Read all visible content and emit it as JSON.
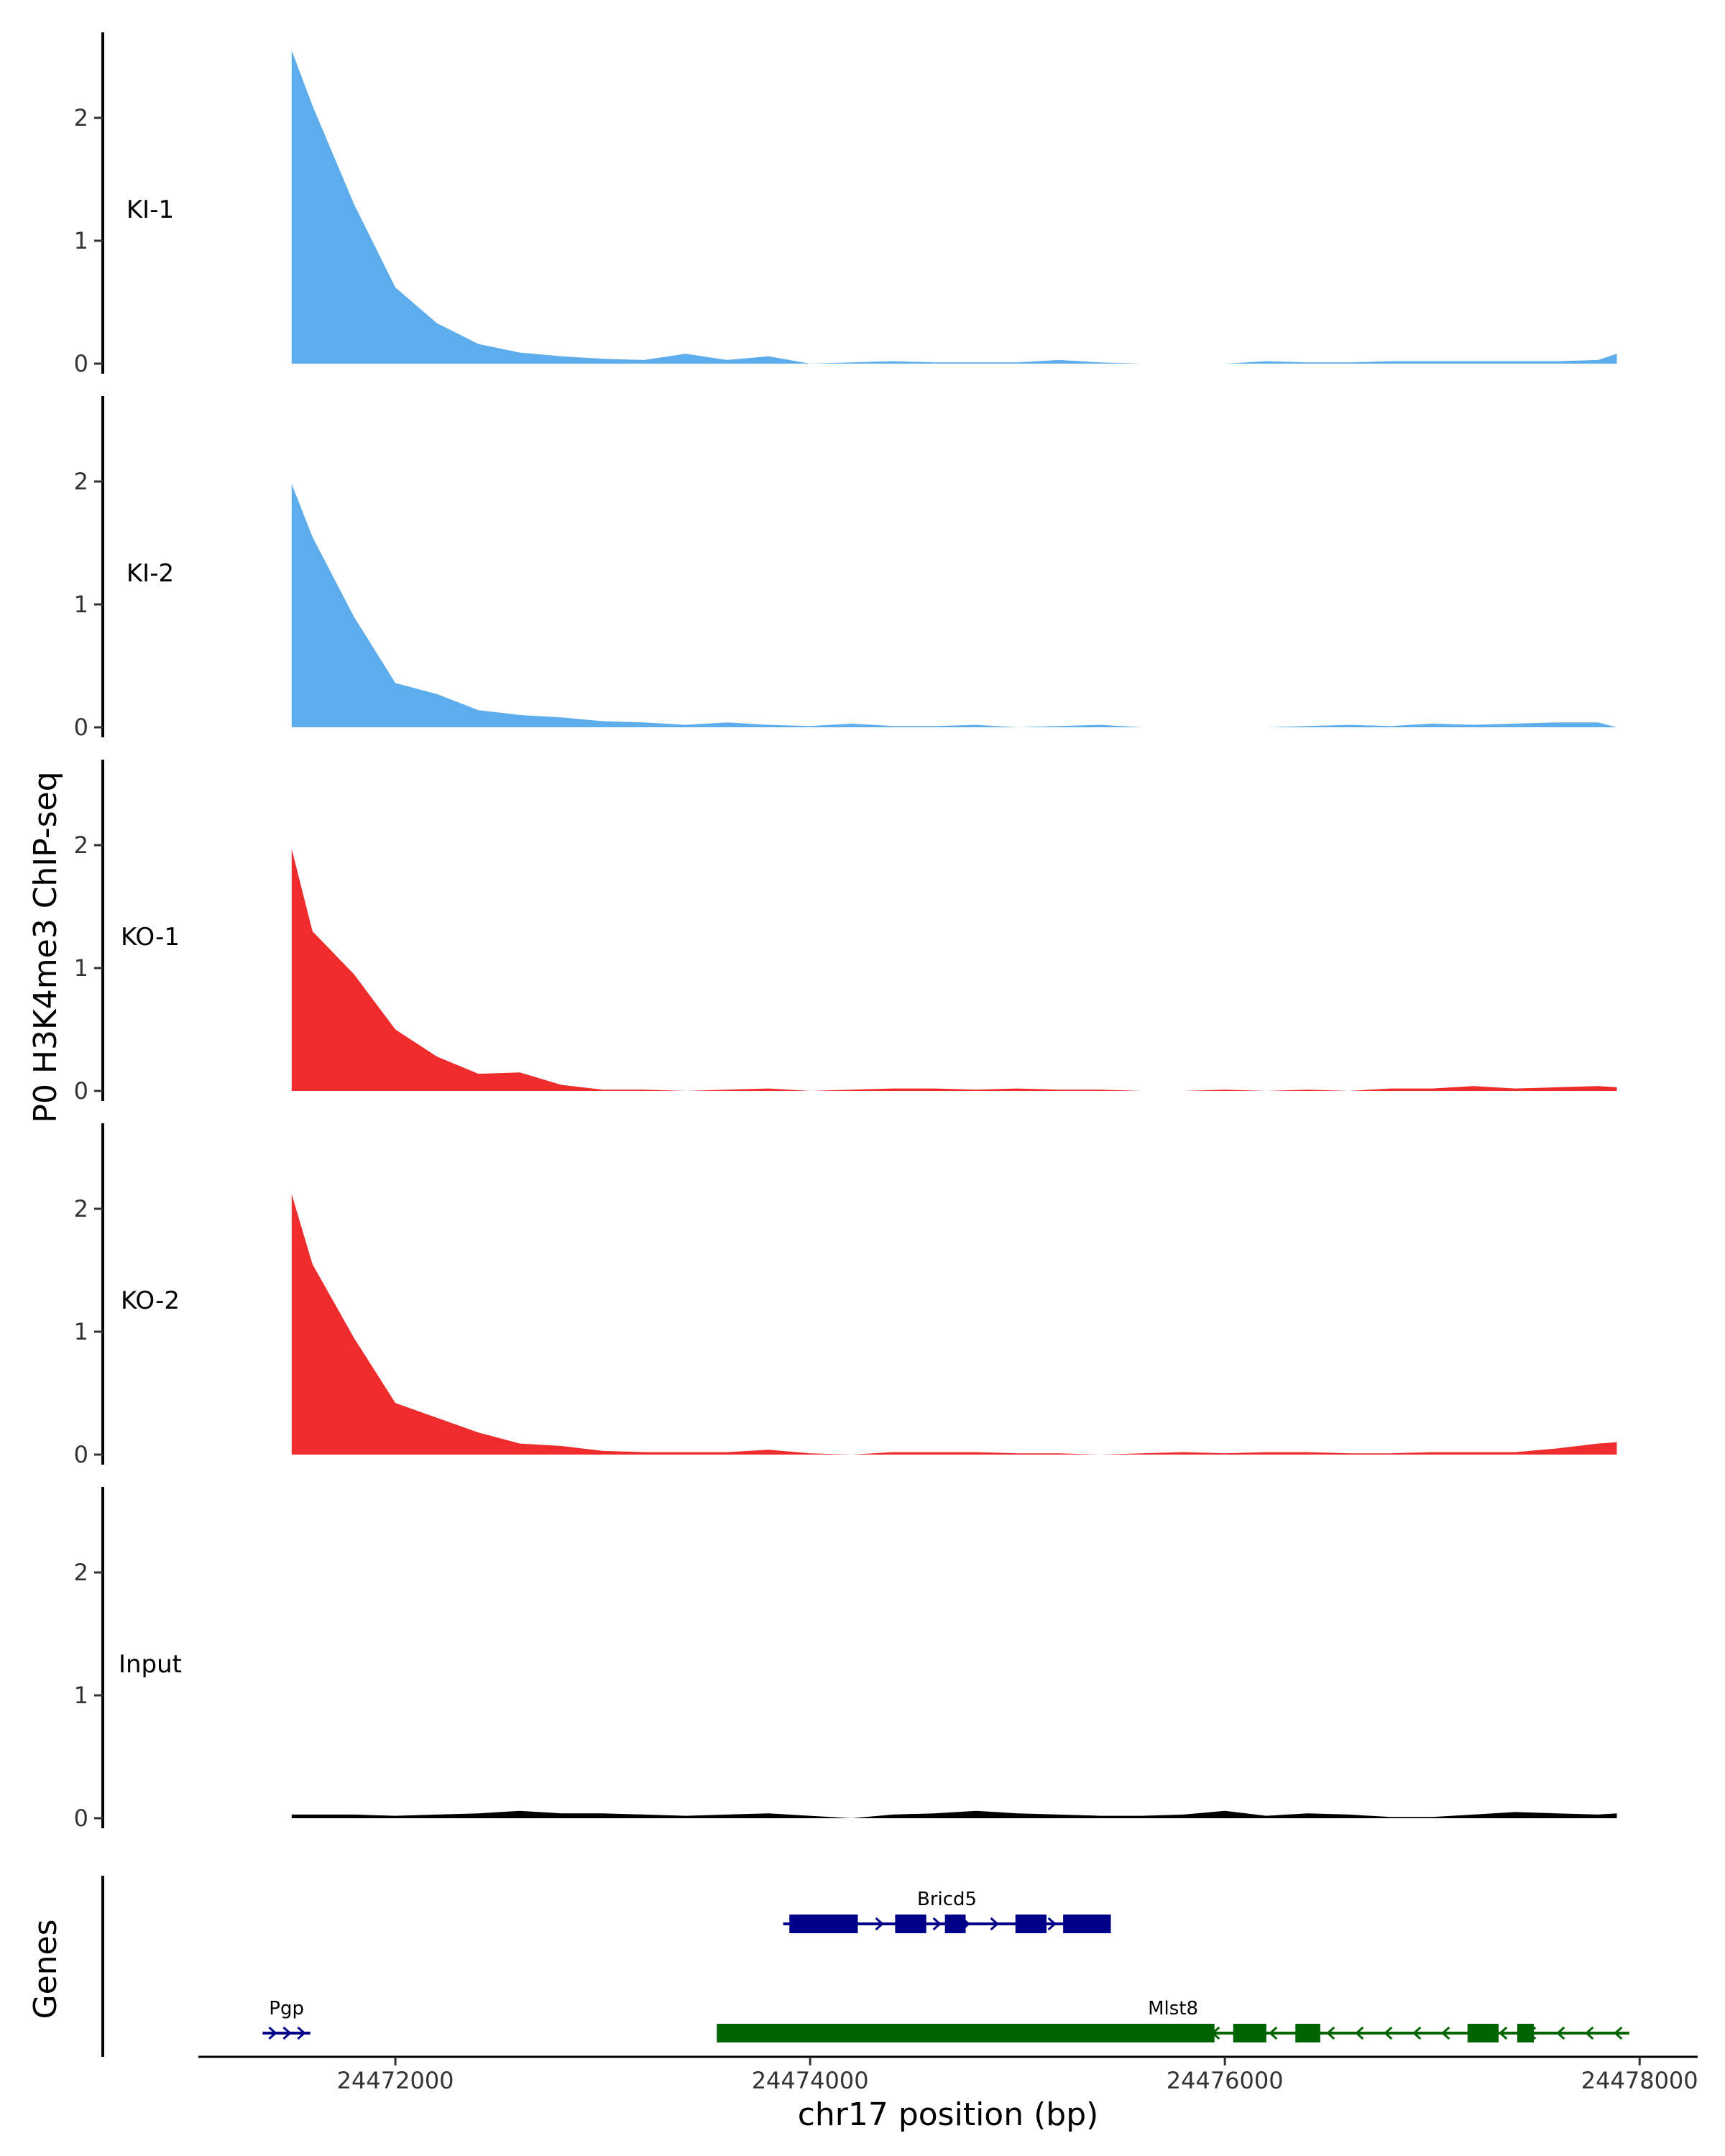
{
  "chart_data": {
    "type": "area",
    "ylabel": "P0 H3K4me3 ChIP-seq",
    "xlabel": "chr17 position (bp)",
    "xlim": [
      24471050,
      24478280
    ],
    "ylim": [
      0,
      2.6
    ],
    "y_ticks": [
      "0",
      "1",
      "2"
    ],
    "y_tick_values": [
      0,
      1,
      2
    ],
    "x_ticks": [
      "24472000",
      "24474000",
      "24476000",
      "24478000"
    ],
    "x_tick_values": [
      24472000,
      24474000,
      24476000,
      24478000
    ],
    "grid": false,
    "legend": "none",
    "tracks": [
      {
        "name": "KI-1",
        "color": "#5DADEC",
        "x": [
          24471500,
          24471600,
          24471800,
          24472000,
          24472200,
          24472400,
          24472600,
          24472800,
          24473000,
          24473200,
          24473400,
          24473600,
          24473800,
          24474000,
          24474200,
          24474400,
          24474600,
          24474800,
          24475000,
          24475200,
          24475400,
          24475600,
          24475800,
          24476000,
          24476200,
          24476400,
          24476600,
          24476800,
          24477000,
          24477200,
          24477400,
          24477600,
          24477800,
          24477890
        ],
        "values": [
          2.55,
          2.1,
          1.3,
          0.62,
          0.33,
          0.16,
          0.09,
          0.06,
          0.04,
          0.03,
          0.08,
          0.03,
          0.06,
          0.0,
          0.01,
          0.02,
          0.01,
          0.01,
          0.01,
          0.03,
          0.01,
          0.0,
          0.0,
          0.0,
          0.02,
          0.01,
          0.01,
          0.02,
          0.02,
          0.02,
          0.02,
          0.02,
          0.03,
          0.08
        ]
      },
      {
        "name": "KI-2",
        "color": "#5DADEC",
        "x": [
          24471500,
          24471600,
          24471800,
          24472000,
          24472200,
          24472400,
          24472600,
          24472800,
          24473000,
          24473200,
          24473400,
          24473600,
          24473800,
          24474000,
          24474200,
          24474400,
          24474600,
          24474800,
          24475000,
          24475200,
          24475400,
          24475600,
          24475800,
          24476000,
          24476200,
          24476400,
          24476600,
          24476800,
          24477000,
          24477200,
          24477400,
          24477600,
          24477800,
          24477890
        ],
        "values": [
          1.98,
          1.55,
          0.9,
          0.36,
          0.27,
          0.14,
          0.1,
          0.08,
          0.05,
          0.04,
          0.02,
          0.04,
          0.02,
          0.01,
          0.03,
          0.01,
          0.01,
          0.02,
          0.0,
          0.01,
          0.02,
          0.0,
          0.0,
          0.0,
          0.0,
          0.01,
          0.02,
          0.01,
          0.03,
          0.02,
          0.03,
          0.04,
          0.04,
          0.0
        ]
      },
      {
        "name": "KO-1",
        "color": "#EE2C2C",
        "x": [
          24471500,
          24471600,
          24471800,
          24472000,
          24472200,
          24472400,
          24472600,
          24472800,
          24473000,
          24473200,
          24473400,
          24473600,
          24473800,
          24474000,
          24474200,
          24474400,
          24474600,
          24474800,
          24475000,
          24475200,
          24475400,
          24475600,
          24475800,
          24476000,
          24476200,
          24476400,
          24476600,
          24476800,
          24477000,
          24477200,
          24477400,
          24477600,
          24477800,
          24477890
        ],
        "values": [
          1.97,
          1.3,
          0.95,
          0.5,
          0.28,
          0.14,
          0.15,
          0.05,
          0.01,
          0.01,
          0.0,
          0.01,
          0.02,
          0.0,
          0.01,
          0.02,
          0.02,
          0.01,
          0.02,
          0.01,
          0.01,
          0.0,
          0.0,
          0.01,
          0.0,
          0.01,
          0.0,
          0.02,
          0.02,
          0.04,
          0.02,
          0.03,
          0.04,
          0.03
        ]
      },
      {
        "name": "KO-2",
        "color": "#EE2C2C",
        "x": [
          24471500,
          24471600,
          24471800,
          24472000,
          24472200,
          24472400,
          24472600,
          24472800,
          24473000,
          24473200,
          24473400,
          24473600,
          24473800,
          24474000,
          24474200,
          24474400,
          24474600,
          24474800,
          24475000,
          24475200,
          24475400,
          24475600,
          24475800,
          24476000,
          24476200,
          24476400,
          24476600,
          24476800,
          24477000,
          24477200,
          24477400,
          24477600,
          24477800,
          24477890
        ],
        "values": [
          2.12,
          1.55,
          0.95,
          0.42,
          0.3,
          0.18,
          0.09,
          0.07,
          0.03,
          0.02,
          0.02,
          0.02,
          0.04,
          0.01,
          0.0,
          0.02,
          0.02,
          0.02,
          0.01,
          0.01,
          0.0,
          0.01,
          0.02,
          0.01,
          0.02,
          0.02,
          0.01,
          0.01,
          0.02,
          0.02,
          0.02,
          0.05,
          0.09,
          0.1
        ]
      },
      {
        "name": "Input",
        "color": "#000000",
        "x": [
          24471500,
          24471800,
          24472000,
          24472200,
          24472400,
          24472600,
          24472800,
          24473000,
          24473200,
          24473400,
          24473600,
          24473800,
          24474000,
          24474200,
          24474400,
          24474600,
          24474800,
          24475000,
          24475200,
          24475400,
          24475600,
          24475800,
          24476000,
          24476200,
          24476400,
          24476600,
          24476800,
          24477000,
          24477200,
          24477400,
          24477600,
          24477800,
          24477890
        ],
        "values": [
          0.03,
          0.03,
          0.02,
          0.03,
          0.04,
          0.06,
          0.04,
          0.04,
          0.03,
          0.02,
          0.03,
          0.04,
          0.02,
          0.0,
          0.03,
          0.04,
          0.06,
          0.04,
          0.03,
          0.02,
          0.02,
          0.03,
          0.06,
          0.02,
          0.04,
          0.03,
          0.01,
          0.01,
          0.03,
          0.05,
          0.04,
          0.03,
          0.04
        ]
      }
    ],
    "genes": {
      "label": "Genes",
      "items": [
        {
          "name": "Bricd5",
          "color": "#00008B",
          "strand": "+",
          "start": 24473870,
          "end": 24475450,
          "exons": [
            [
              24473900,
              24474230
            ],
            [
              24474410,
              24474560
            ],
            [
              24474650,
              24474750
            ],
            [
              24474990,
              24475140
            ],
            [
              24475220,
              24475450
            ]
          ]
        },
        {
          "name": "Pgp",
          "color": "#00008B",
          "strand": "+",
          "start": 24471360,
          "end": 24471590,
          "exons": []
        },
        {
          "name": "Mlst8",
          "color": "#006400",
          "strand": "-",
          "start": 24473550,
          "end": 24477950,
          "exons": [
            [
              24473550,
              24475950
            ],
            [
              24476040,
              24476200
            ],
            [
              24476340,
              24476460
            ],
            [
              24477170,
              24477320
            ],
            [
              24477410,
              24477490
            ]
          ]
        }
      ]
    }
  }
}
